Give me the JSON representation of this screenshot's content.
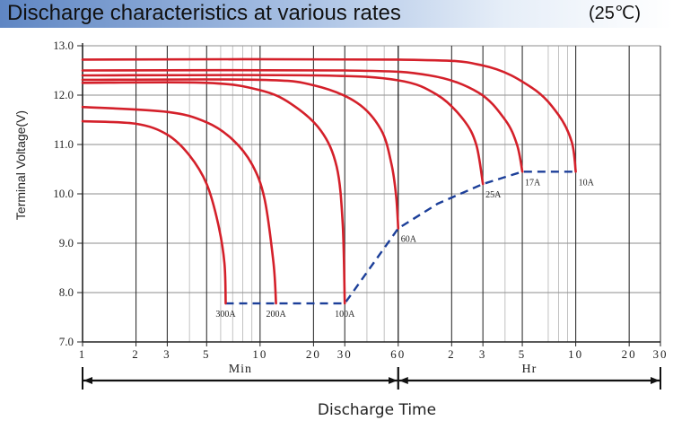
{
  "header": {
    "title": "Discharge characteristics at various rates",
    "temperature": "(25℃)",
    "gradient_colors": [
      "#5f86c3",
      "#a9c1e4",
      "#ffffff"
    ]
  },
  "chart_data": {
    "type": "line",
    "title": "Discharge characteristics at various rates",
    "ylabel": "Terminal Voltage(V)",
    "xlabel": "Discharge Time",
    "x_scale": "log",
    "x_unit_note": "x values expressed in minutes (1 Hr = 60 min)",
    "ylim": [
      7.0,
      13.0
    ],
    "xlim_minutes": [
      1,
      1800
    ],
    "y_ticks": [
      "7.0",
      "8.0",
      "9.0",
      "10.0",
      "11.0",
      "12.0",
      "13.0"
    ],
    "y_tick_values": [
      7,
      8,
      9,
      10,
      11,
      12,
      13
    ],
    "x_ticks": [
      {
        "label": "1",
        "minutes": 1
      },
      {
        "label": "2",
        "minutes": 2
      },
      {
        "label": "3",
        "minutes": 3
      },
      {
        "label": "5",
        "minutes": 5
      },
      {
        "label": "10",
        "minutes": 10
      },
      {
        "label": "20",
        "minutes": 20
      },
      {
        "label": "30",
        "minutes": 30
      },
      {
        "label": "60",
        "minutes": 60
      },
      {
        "label": "2",
        "minutes": 120
      },
      {
        "label": "3",
        "minutes": 180
      },
      {
        "label": "5",
        "minutes": 300
      },
      {
        "label": "10",
        "minutes": 600
      },
      {
        "label": "20",
        "minutes": 1200
      },
      {
        "label": "30",
        "minutes": 1800
      }
    ],
    "minor_x_minutes": [
      4,
      6,
      7,
      8,
      9,
      40,
      50,
      240,
      420,
      480,
      540
    ],
    "regions": [
      {
        "label": "Min",
        "from_minutes": 1,
        "to_minutes": 60
      },
      {
        "label": "Hr",
        "from_minutes": 60,
        "to_minutes": 1800
      }
    ],
    "grid": true,
    "series_color": "#d4202a",
    "cutoff_color": "#1c3f99",
    "series": [
      {
        "name": "300A",
        "x": [
          1,
          2,
          3,
          4,
          5,
          5.8,
          6.3,
          6.4
        ],
        "y": [
          11.47,
          11.42,
          11.2,
          10.78,
          10.2,
          9.4,
          8.6,
          7.78
        ]
      },
      {
        "name": "200A",
        "x": [
          1,
          3,
          5,
          7,
          9,
          10.6,
          11.9,
          12.3
        ],
        "y": [
          11.76,
          11.66,
          11.45,
          11.1,
          10.6,
          9.9,
          8.6,
          7.78
        ]
      },
      {
        "name": "100A",
        "x": [
          1,
          5,
          10,
          15,
          22,
          27,
          29.2,
          30
        ],
        "y": [
          12.25,
          12.25,
          12.1,
          11.82,
          11.28,
          10.55,
          9.4,
          7.78
        ]
      },
      {
        "name": "60A",
        "x": [
          1,
          10,
          20,
          35,
          48,
          55,
          58.4,
          60
        ],
        "y": [
          12.31,
          12.31,
          12.2,
          11.85,
          11.3,
          10.6,
          9.95,
          9.3
        ]
      },
      {
        "name": "25A",
        "x": [
          1,
          20,
          60,
          100,
          140,
          165,
          180
        ],
        "y": [
          12.4,
          12.4,
          12.3,
          12.0,
          11.5,
          11.0,
          10.2
        ]
      },
      {
        "name": "17A",
        "x": [
          1,
          30,
          90,
          170,
          240,
          280,
          300
        ],
        "y": [
          12.5,
          12.5,
          12.4,
          12.05,
          11.5,
          11.0,
          10.45
        ]
      },
      {
        "name": "10A",
        "x": [
          1,
          60,
          180,
          340,
          480,
          570,
          600
        ],
        "y": [
          12.72,
          12.72,
          12.6,
          12.15,
          11.6,
          11.05,
          10.45
        ]
      }
    ],
    "cutoff_line": {
      "x": [
        6.4,
        12.3,
        30,
        60,
        100,
        180,
        300,
        600
      ],
      "y": [
        7.78,
        7.78,
        7.78,
        9.3,
        9.8,
        10.2,
        10.45,
        10.45
      ]
    },
    "annotations": [
      {
        "text": "300A",
        "x": 6.4,
        "y": 7.78
      },
      {
        "text": "200A",
        "x": 12.3,
        "y": 7.78
      },
      {
        "text": "100A",
        "x": 30,
        "y": 7.78
      },
      {
        "text": "60A",
        "x": 60,
        "y": 9.3
      },
      {
        "text": "25A",
        "x": 180,
        "y": 10.2
      },
      {
        "text": "17A",
        "x": 300,
        "y": 10.45
      },
      {
        "text": "10A",
        "x": 600,
        "y": 10.45
      }
    ]
  }
}
